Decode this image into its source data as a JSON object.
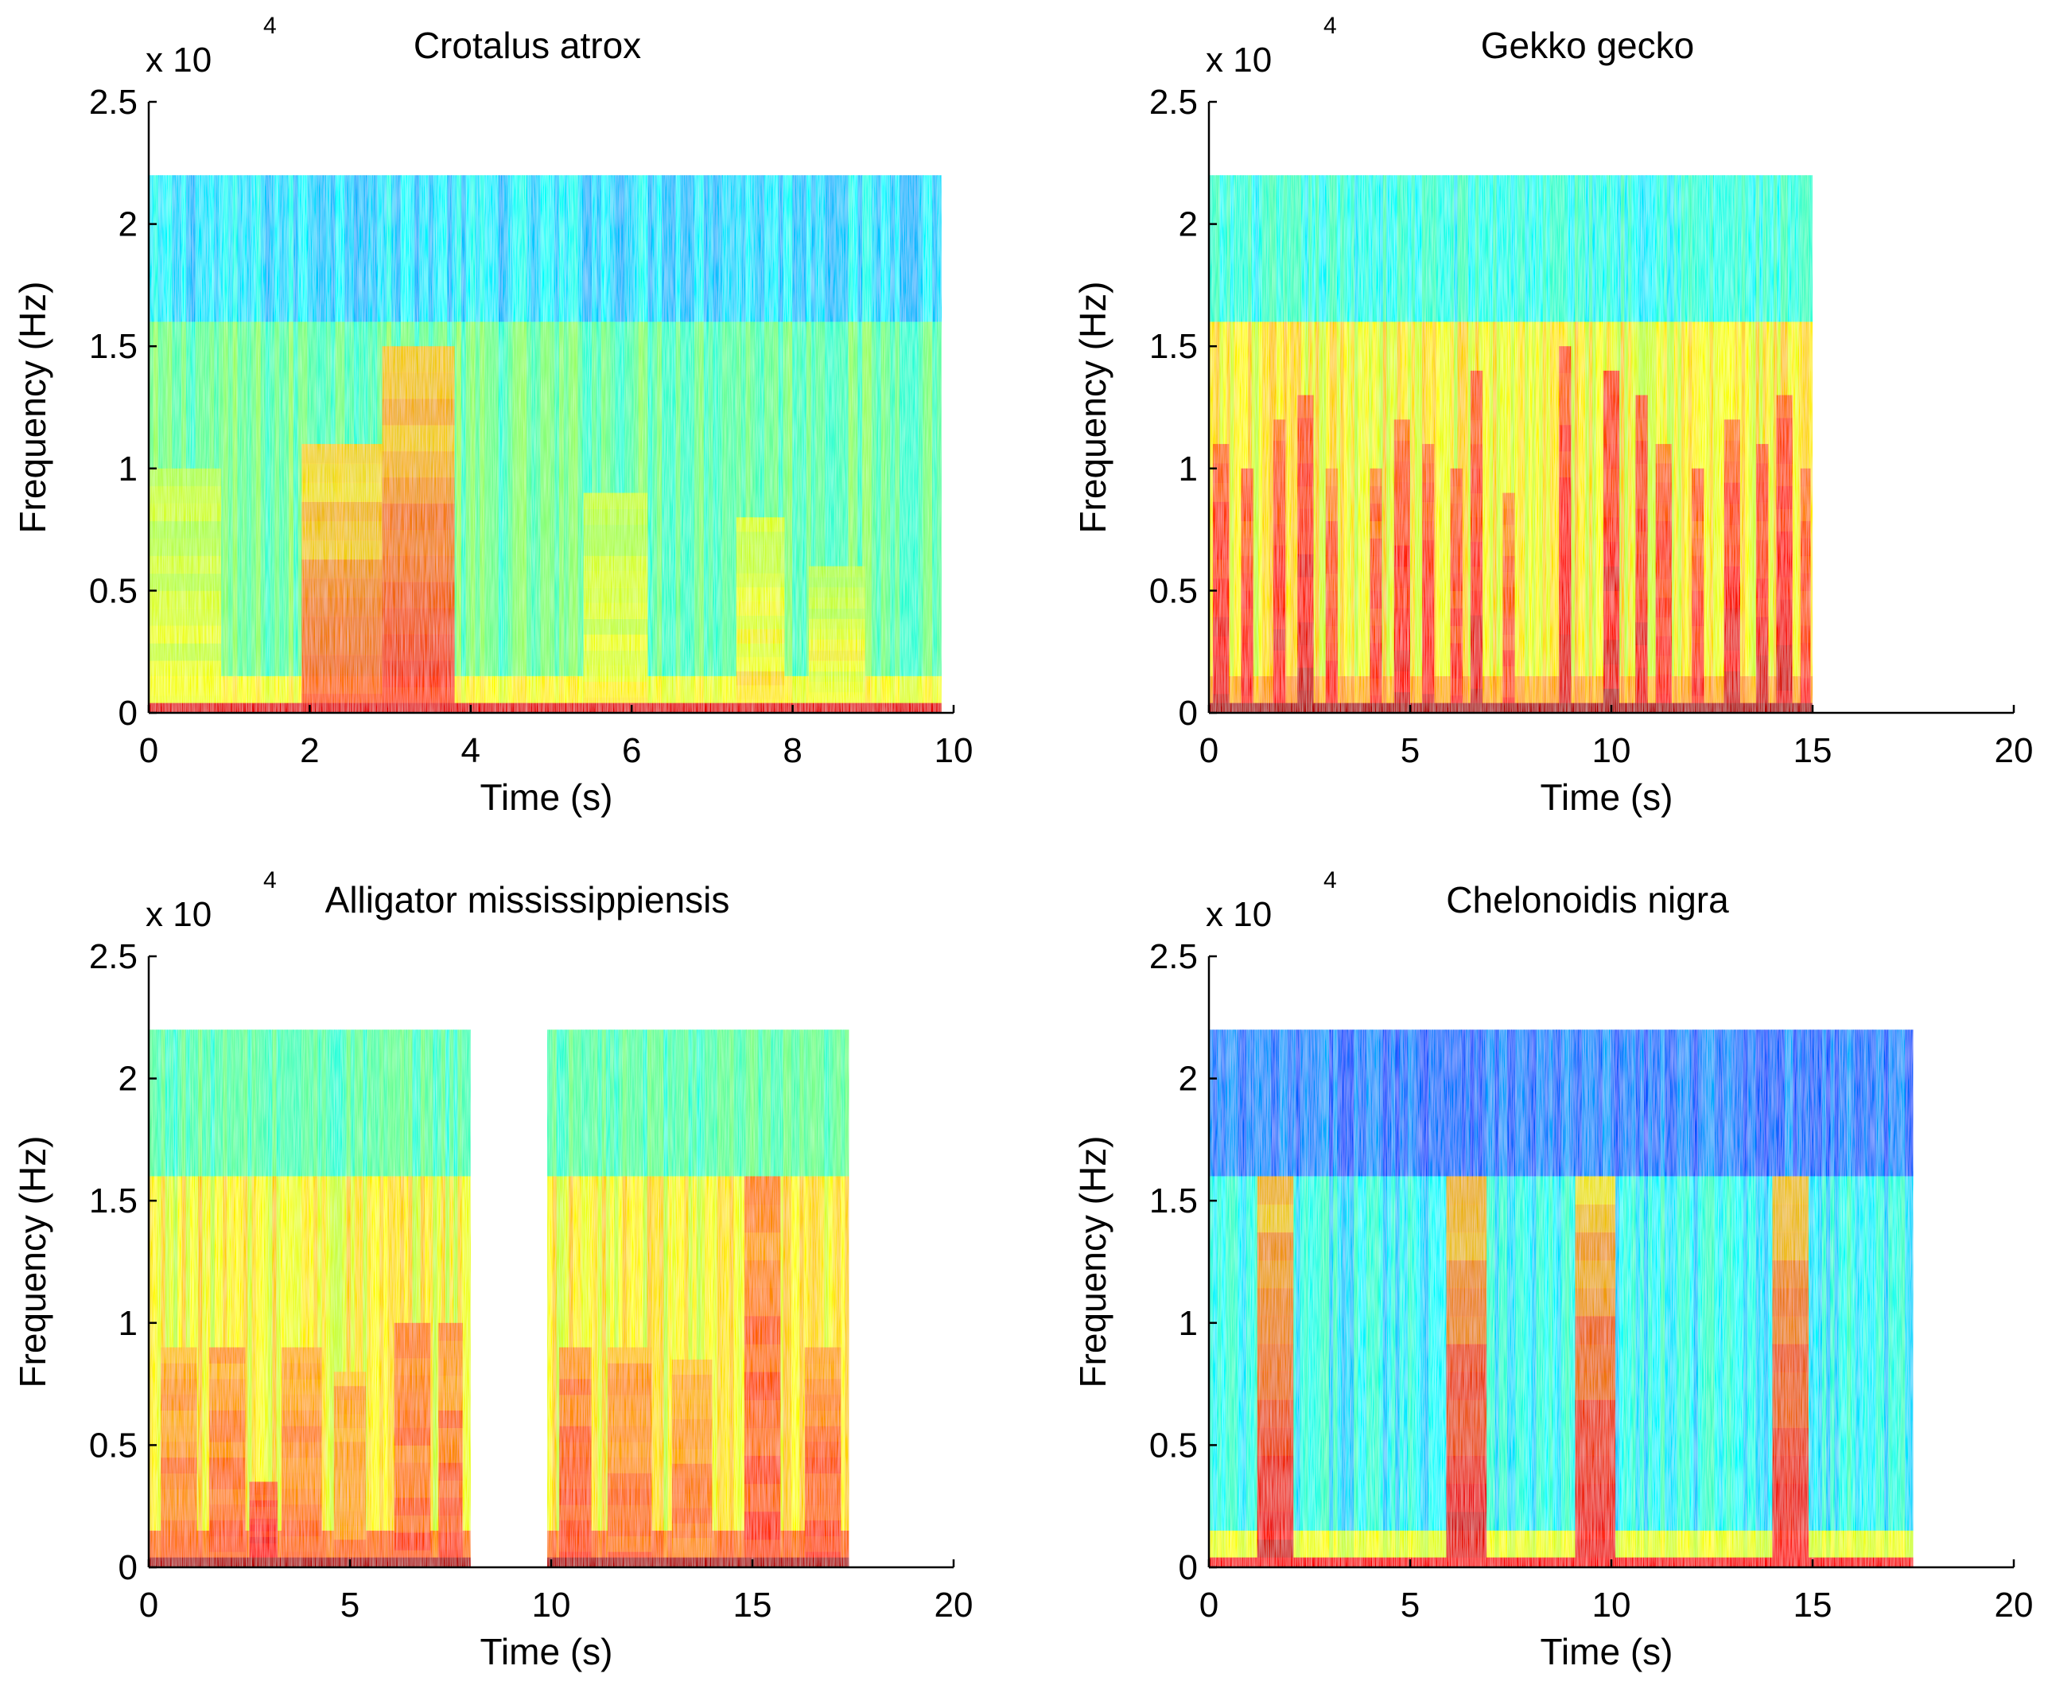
{
  "figure": {
    "description_free": true
  },
  "chart_data": [
    {
      "type": "heatmap",
      "title": "Crotalus atrox",
      "xlabel": "Time (s)",
      "ylabel": "Frequency (Hz)",
      "y_scale_label": "x 10",
      "y_scale_power": "4",
      "xlim": [
        0,
        10
      ],
      "ylim": [
        0,
        2.5
      ],
      "xticks": [
        0,
        2,
        4,
        6,
        8,
        10
      ],
      "yticks": [
        0,
        0.5,
        1,
        1.5,
        2,
        2.5
      ],
      "xtick_labels": [
        "0",
        "2",
        "4",
        "6",
        "8",
        "10"
      ],
      "ytick_labels": [
        "0",
        "0.5",
        "1",
        "1.5",
        "2",
        "2.5"
      ],
      "data_extent": {
        "t_start": 0,
        "t_end": 9.85,
        "f_max": 2.2,
        "band_edge": 1.6
      },
      "background_level": 0.35,
      "low_band_level": 0.62,
      "events": [
        {
          "t0": 0.0,
          "t1": 0.9,
          "fmax": 1.0,
          "level": 0.62
        },
        {
          "t0": 1.9,
          "t1": 2.9,
          "fmax": 1.1,
          "level": 0.78
        },
        {
          "t0": 2.9,
          "t1": 3.8,
          "fmax": 1.5,
          "level": 0.82
        },
        {
          "t0": 5.4,
          "t1": 6.2,
          "fmax": 0.9,
          "level": 0.62
        },
        {
          "t0": 7.3,
          "t1": 7.9,
          "fmax": 0.8,
          "level": 0.65
        },
        {
          "t0": 8.2,
          "t1": 8.9,
          "fmax": 0.6,
          "level": 0.64
        }
      ]
    },
    {
      "type": "heatmap",
      "title": "Gekko gecko",
      "xlabel": "Time (s)",
      "ylabel": "Frequency (Hz)",
      "y_scale_label": "x 10",
      "y_scale_power": "4",
      "xlim": [
        0,
        20
      ],
      "ylim": [
        0,
        2.5
      ],
      "xticks": [
        0,
        5,
        10,
        15,
        20
      ],
      "yticks": [
        0,
        0.5,
        1,
        1.5,
        2,
        2.5
      ],
      "xtick_labels": [
        "0",
        "5",
        "10",
        "15",
        "20"
      ],
      "ytick_labels": [
        "0",
        "0.5",
        "1",
        "1.5",
        "2",
        "2.5"
      ],
      "data_extent": {
        "t_start": 0,
        "t_end": 15.0,
        "f_max": 2.2,
        "band_edge": 1.6
      },
      "background_level": 0.4,
      "band_level": 0.62,
      "low_band_level": 0.7,
      "events": [
        {
          "t0": 0.1,
          "t1": 0.5,
          "fmax": 1.1,
          "level": 0.9
        },
        {
          "t0": 0.8,
          "t1": 1.1,
          "fmax": 1.0,
          "level": 0.88
        },
        {
          "t0": 1.6,
          "t1": 1.9,
          "fmax": 1.2,
          "level": 0.9
        },
        {
          "t0": 2.2,
          "t1": 2.6,
          "fmax": 1.3,
          "level": 0.93
        },
        {
          "t0": 2.9,
          "t1": 3.2,
          "fmax": 1.0,
          "level": 0.85
        },
        {
          "t0": 4.0,
          "t1": 4.3,
          "fmax": 1.0,
          "level": 0.86
        },
        {
          "t0": 4.6,
          "t1": 5.0,
          "fmax": 1.2,
          "level": 0.9
        },
        {
          "t0": 5.3,
          "t1": 5.6,
          "fmax": 1.1,
          "level": 0.88
        },
        {
          "t0": 6.0,
          "t1": 6.3,
          "fmax": 1.0,
          "level": 0.86
        },
        {
          "t0": 6.5,
          "t1": 6.8,
          "fmax": 1.4,
          "level": 0.9
        },
        {
          "t0": 7.3,
          "t1": 7.6,
          "fmax": 0.9,
          "level": 0.84
        },
        {
          "t0": 8.7,
          "t1": 9.0,
          "fmax": 1.5,
          "level": 0.92
        },
        {
          "t0": 9.8,
          "t1": 10.2,
          "fmax": 1.4,
          "level": 0.92
        },
        {
          "t0": 10.6,
          "t1": 10.9,
          "fmax": 1.3,
          "level": 0.9
        },
        {
          "t0": 11.1,
          "t1": 11.5,
          "fmax": 1.1,
          "level": 0.88
        },
        {
          "t0": 12.0,
          "t1": 12.3,
          "fmax": 1.0,
          "level": 0.86
        },
        {
          "t0": 12.8,
          "t1": 13.2,
          "fmax": 1.2,
          "level": 0.9
        },
        {
          "t0": 13.6,
          "t1": 13.9,
          "fmax": 1.1,
          "level": 0.9
        },
        {
          "t0": 14.1,
          "t1": 14.5,
          "fmax": 1.3,
          "level": 0.92
        },
        {
          "t0": 14.7,
          "t1": 14.95,
          "fmax": 1.0,
          "level": 0.86
        }
      ]
    },
    {
      "type": "heatmap",
      "title": "Alligator mississippiensis",
      "xlabel": "Time (s)",
      "ylabel": "Frequency (Hz)",
      "y_scale_label": "x 10",
      "y_scale_power": "4",
      "xlim": [
        0,
        20
      ],
      "ylim": [
        0,
        2.5
      ],
      "xticks": [
        0,
        5,
        10,
        15,
        20
      ],
      "yticks": [
        0,
        0.5,
        1,
        1.5,
        2,
        2.5
      ],
      "xtick_labels": [
        "0",
        "5",
        "10",
        "15",
        "20"
      ],
      "ytick_labels": [
        "0",
        "0.5",
        "1",
        "1.5",
        "2",
        "2.5"
      ],
      "segments": [
        {
          "t_start": 0,
          "t_end": 8.0
        },
        {
          "t_start": 9.9,
          "t_end": 17.4
        }
      ],
      "data_extent": {
        "f_max": 2.2,
        "band_edge": 1.6
      },
      "background_level": 0.45,
      "band_level": 0.62,
      "low_band_level": 0.75,
      "events": [
        {
          "t0": 0.3,
          "t1": 1.2,
          "fmax": 0.9,
          "level": 0.78
        },
        {
          "t0": 1.5,
          "t1": 2.4,
          "fmax": 0.9,
          "level": 0.78
        },
        {
          "t0": 2.5,
          "t1": 3.2,
          "fmax": 0.35,
          "level": 0.9
        },
        {
          "t0": 3.3,
          "t1": 4.3,
          "fmax": 0.9,
          "level": 0.78
        },
        {
          "t0": 4.6,
          "t1": 5.4,
          "fmax": 0.8,
          "level": 0.75
        },
        {
          "t0": 6.1,
          "t1": 7.0,
          "fmax": 1.0,
          "level": 0.8
        },
        {
          "t0": 7.2,
          "t1": 7.8,
          "fmax": 1.0,
          "level": 0.8
        },
        {
          "t0": 10.2,
          "t1": 11.0,
          "fmax": 0.9,
          "level": 0.82
        },
        {
          "t0": 11.4,
          "t1": 12.5,
          "fmax": 0.9,
          "level": 0.78
        },
        {
          "t0": 13.0,
          "t1": 14.0,
          "fmax": 0.85,
          "level": 0.76
        },
        {
          "t0": 14.8,
          "t1": 15.7,
          "fmax": 1.6,
          "level": 0.82
        },
        {
          "t0": 16.3,
          "t1": 17.2,
          "fmax": 0.9,
          "level": 0.82
        }
      ]
    },
    {
      "type": "heatmap",
      "title": "Chelonoidis nigra",
      "xlabel": "Time (s)",
      "ylabel": "Frequency (Hz)",
      "y_scale_label": "x 10",
      "y_scale_power": "4",
      "xlim": [
        0,
        20
      ],
      "ylim": [
        0,
        2.5
      ],
      "xticks": [
        0,
        5,
        10,
        15,
        20
      ],
      "yticks": [
        0,
        0.5,
        1,
        1.5,
        2,
        2.5
      ],
      "xtick_labels": [
        "0",
        "5",
        "10",
        "15",
        "20"
      ],
      "ytick_labels": [
        "0",
        "0.5",
        "1",
        "1.5",
        "2",
        "2.5"
      ],
      "data_extent": {
        "t_start": 0,
        "t_end": 17.5,
        "f_max": 2.2,
        "band_edge": 1.6
      },
      "background_level": 0.25,
      "band_level": 0.38,
      "low_band_level": 0.6,
      "events": [
        {
          "t0": 1.2,
          "t1": 2.1,
          "fmax": 1.6,
          "level": 0.9
        },
        {
          "t0": 5.9,
          "t1": 6.9,
          "fmax": 1.6,
          "level": 0.9
        },
        {
          "t0": 9.1,
          "t1": 10.1,
          "fmax": 1.6,
          "level": 0.9
        },
        {
          "t0": 14.0,
          "t1": 14.9,
          "fmax": 1.6,
          "level": 0.9
        }
      ]
    }
  ]
}
